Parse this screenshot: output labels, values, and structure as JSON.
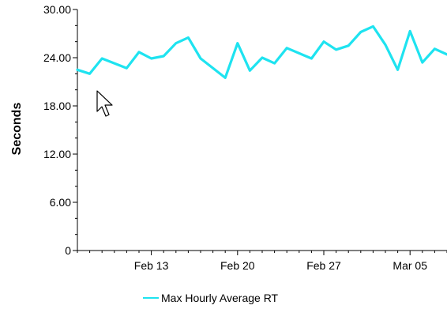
{
  "chart_data": {
    "type": "line",
    "title": "",
    "xlabel": "",
    "ylabel": "Seconds",
    "ylim": [
      0,
      30
    ],
    "xlim": [
      "2004-02-07",
      "2004-03-08"
    ],
    "yticks": [
      "0",
      "6.00",
      "12.00",
      "18.00",
      "24.00",
      "30.00"
    ],
    "ytick_values": [
      0,
      6,
      12,
      18,
      24,
      30
    ],
    "xticks": [
      {
        "label": "Feb 13",
        "date": "2004-02-13"
      },
      {
        "label": "Feb 20",
        "date": "2004-02-20"
      },
      {
        "label": "Feb 27",
        "date": "2004-02-27"
      },
      {
        "label": "Mar 05",
        "date": "2004-03-05"
      }
    ],
    "legend_position": "bottom-center",
    "grid": false,
    "series": [
      {
        "name": "Max Hourly Average RT",
        "color": "#1ee3f0",
        "points": [
          {
            "x": "2004-02-07",
            "y": 22.5
          },
          {
            "x": "2004-02-08",
            "y": 22.0
          },
          {
            "x": "2004-02-09",
            "y": 23.9
          },
          {
            "x": "2004-02-11",
            "y": 22.7
          },
          {
            "x": "2004-02-12",
            "y": 24.7
          },
          {
            "x": "2004-02-13",
            "y": 23.9
          },
          {
            "x": "2004-02-14",
            "y": 24.2
          },
          {
            "x": "2004-02-15",
            "y": 25.8
          },
          {
            "x": "2004-02-16",
            "y": 26.5
          },
          {
            "x": "2004-02-17",
            "y": 23.9
          },
          {
            "x": "2004-02-19",
            "y": 21.5
          },
          {
            "x": "2004-02-20",
            "y": 25.8
          },
          {
            "x": "2004-02-21",
            "y": 22.4
          },
          {
            "x": "2004-02-22",
            "y": 24.0
          },
          {
            "x": "2004-02-23",
            "y": 23.3
          },
          {
            "x": "2004-02-24",
            "y": 25.2
          },
          {
            "x": "2004-02-26",
            "y": 23.9
          },
          {
            "x": "2004-02-27",
            "y": 26.0
          },
          {
            "x": "2004-02-28",
            "y": 25.0
          },
          {
            "x": "2004-02-29",
            "y": 25.5
          },
          {
            "x": "2004-03-01",
            "y": 27.2
          },
          {
            "x": "2004-03-02",
            "y": 27.9
          },
          {
            "x": "2004-03-03",
            "y": 25.6
          },
          {
            "x": "2004-03-04",
            "y": 22.5
          },
          {
            "x": "2004-03-05",
            "y": 27.3
          },
          {
            "x": "2004-03-06",
            "y": 23.4
          },
          {
            "x": "2004-03-07",
            "y": 25.1
          },
          {
            "x": "2004-03-08",
            "y": 24.4
          }
        ]
      }
    ]
  },
  "cursor": {
    "icon": "arrow-pointer-icon"
  }
}
